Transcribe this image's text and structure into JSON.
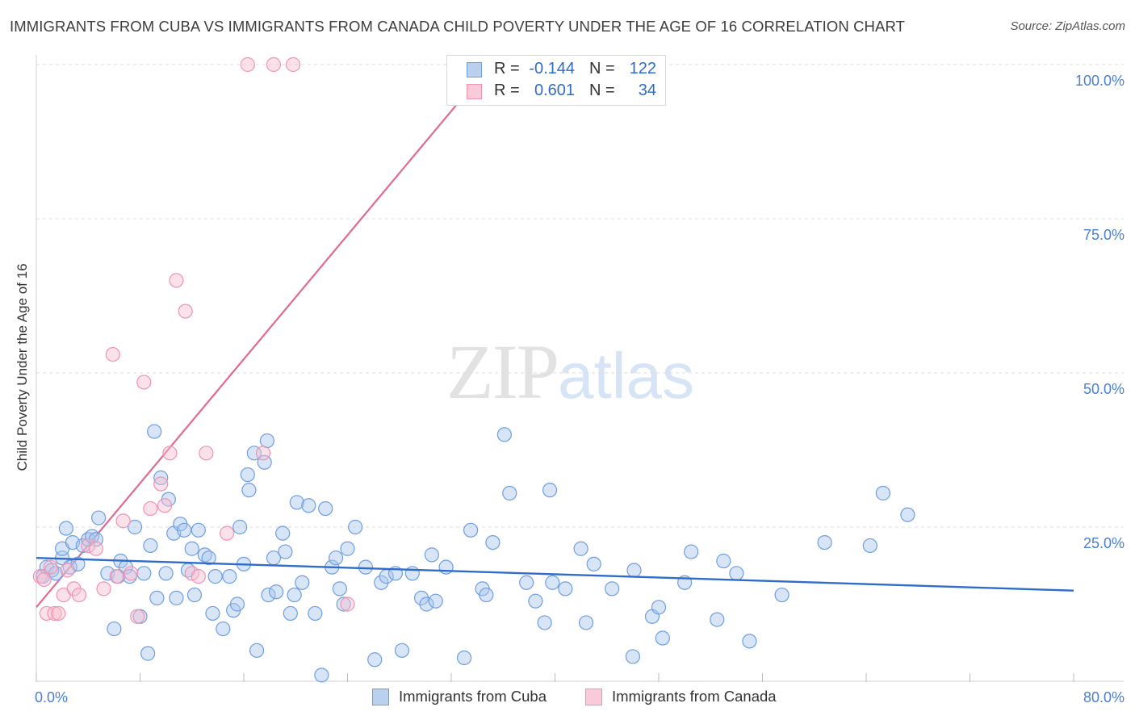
{
  "header": {
    "title": "IMMIGRANTS FROM CUBA VS IMMIGRANTS FROM CANADA CHILD POVERTY UNDER THE AGE OF 16 CORRELATION CHART",
    "source": "Source: ZipAtlas.com"
  },
  "watermark": {
    "zip": "ZIP",
    "atlas": "atlas"
  },
  "legend": {
    "rows": [
      {
        "r_label": "R =",
        "r_value": "-0.144",
        "n_label": "N =",
        "n_value": "122"
      },
      {
        "r_label": "R =",
        "r_value": "0.601",
        "n_label": "N =",
        "n_value": "34"
      }
    ]
  },
  "bottom_legend": {
    "cuba": "Immigrants from Cuba",
    "canada": "Immigrants from Canada"
  },
  "colors": {
    "cuba_fill": "#a9c6ee",
    "cuba_stroke": "#6f9ee0",
    "cuba_line": "#2f6cc9",
    "canada_fill": "#f7bfd0",
    "canada_stroke": "#ef93b1",
    "canada_line": "#e06a93",
    "tick_text": "#4a7fd4",
    "grid": "#dcdcdc"
  },
  "chart_data": {
    "type": "scatter",
    "title": "IMMIGRANTS FROM CUBA VS IMMIGRANTS FROM CANADA CHILD POVERTY UNDER THE AGE OF 16 CORRELATION CHART",
    "xlabel": "",
    "ylabel": "Child Poverty Under the Age of 16",
    "xlim": [
      0,
      80
    ],
    "ylim": [
      0,
      100
    ],
    "x_tick_labels": [
      "0.0%",
      "80.0%"
    ],
    "y_ticks": [
      25,
      50,
      75,
      100
    ],
    "y_tick_labels": [
      "25.0%",
      "50.0%",
      "75.0%",
      "100.0%"
    ],
    "grid": true,
    "legend_position": "top-center",
    "series": [
      {
        "name": "Immigrants from Cuba",
        "r": -0.144,
        "n": 122,
        "trend": {
          "x": [
            0,
            80
          ],
          "y": [
            20.0,
            14.7
          ]
        },
        "points": [
          [
            0.5,
            17.0
          ],
          [
            0.8,
            18.5
          ],
          [
            1.2,
            18.0
          ],
          [
            1.5,
            17.5
          ],
          [
            2.0,
            20.0
          ],
          [
            2.0,
            21.5
          ],
          [
            2.3,
            24.8
          ],
          [
            2.6,
            18.5
          ],
          [
            2.8,
            22.5
          ],
          [
            3.2,
            19.0
          ],
          [
            3.6,
            22.0
          ],
          [
            4.0,
            23.0
          ],
          [
            4.3,
            23.5
          ],
          [
            4.6,
            23.0
          ],
          [
            4.8,
            26.5
          ],
          [
            5.5,
            17.5
          ],
          [
            6.0,
            8.5
          ],
          [
            6.3,
            17.0
          ],
          [
            6.5,
            19.5
          ],
          [
            6.9,
            18.5
          ],
          [
            7.2,
            17.0
          ],
          [
            7.6,
            25.0
          ],
          [
            8.0,
            10.5
          ],
          [
            8.3,
            17.5
          ],
          [
            8.6,
            4.5
          ],
          [
            8.8,
            22.0
          ],
          [
            9.1,
            40.5
          ],
          [
            9.3,
            13.5
          ],
          [
            9.6,
            33.0
          ],
          [
            10.0,
            17.5
          ],
          [
            10.2,
            29.5
          ],
          [
            10.6,
            24.0
          ],
          [
            10.8,
            13.5
          ],
          [
            11.1,
            25.5
          ],
          [
            11.4,
            24.5
          ],
          [
            11.7,
            18.0
          ],
          [
            12.0,
            21.5
          ],
          [
            12.2,
            14.0
          ],
          [
            12.5,
            24.5
          ],
          [
            13.0,
            20.5
          ],
          [
            13.3,
            20.0
          ],
          [
            13.6,
            11.0
          ],
          [
            13.8,
            17.0
          ],
          [
            14.4,
            8.5
          ],
          [
            14.9,
            17.0
          ],
          [
            15.2,
            11.5
          ],
          [
            15.5,
            12.5
          ],
          [
            15.7,
            25.0
          ],
          [
            16.0,
            19.0
          ],
          [
            16.4,
            31.0
          ],
          [
            16.3,
            33.5
          ],
          [
            16.8,
            37.0
          ],
          [
            17.0,
            5.0
          ],
          [
            17.6,
            35.5
          ],
          [
            17.8,
            39.0
          ],
          [
            17.9,
            14.0
          ],
          [
            18.3,
            20.0
          ],
          [
            18.5,
            14.5
          ],
          [
            19.0,
            24.0
          ],
          [
            19.2,
            21.0
          ],
          [
            19.6,
            11.0
          ],
          [
            19.9,
            14.0
          ],
          [
            20.1,
            29.0
          ],
          [
            20.5,
            16.0
          ],
          [
            21.0,
            28.5
          ],
          [
            21.5,
            11.0
          ],
          [
            22.0,
            1.0
          ],
          [
            22.3,
            28.0
          ],
          [
            22.8,
            18.5
          ],
          [
            23.1,
            20.0
          ],
          [
            23.4,
            15.0
          ],
          [
            23.7,
            12.5
          ],
          [
            24.0,
            21.5
          ],
          [
            24.6,
            25.0
          ],
          [
            25.4,
            18.5
          ],
          [
            26.1,
            3.5
          ],
          [
            26.6,
            16.0
          ],
          [
            27.0,
            17.0
          ],
          [
            27.7,
            17.5
          ],
          [
            28.2,
            5.0
          ],
          [
            29.0,
            17.5
          ],
          [
            29.7,
            13.5
          ],
          [
            30.1,
            12.5
          ],
          [
            30.5,
            20.5
          ],
          [
            30.8,
            13.0
          ],
          [
            31.6,
            18.5
          ],
          [
            33.0,
            3.8
          ],
          [
            33.5,
            24.5
          ],
          [
            34.4,
            15.0
          ],
          [
            34.7,
            14.0
          ],
          [
            35.2,
            22.5
          ],
          [
            36.1,
            40.0
          ],
          [
            36.5,
            30.5
          ],
          [
            37.8,
            16.0
          ],
          [
            38.5,
            13.0
          ],
          [
            39.2,
            9.5
          ],
          [
            39.6,
            31.0
          ],
          [
            39.8,
            16.0
          ],
          [
            40.8,
            15.0
          ],
          [
            42.0,
            21.5
          ],
          [
            42.4,
            9.5
          ],
          [
            43.0,
            19.0
          ],
          [
            44.4,
            15.0
          ],
          [
            46.0,
            4.0
          ],
          [
            46.1,
            18.0
          ],
          [
            47.5,
            10.5
          ],
          [
            48.0,
            12.0
          ],
          [
            48.3,
            7.0
          ],
          [
            50.0,
            16.0
          ],
          [
            50.5,
            21.0
          ],
          [
            52.5,
            10.0
          ],
          [
            53.0,
            19.5
          ],
          [
            54.0,
            17.5
          ],
          [
            55.0,
            6.5
          ],
          [
            57.5,
            14.0
          ],
          [
            60.8,
            22.5
          ],
          [
            64.3,
            22.0
          ],
          [
            65.3,
            30.5
          ],
          [
            67.2,
            27.0
          ]
        ]
      },
      {
        "name": "Immigrants from Canada",
        "r": 0.601,
        "n": 34,
        "trend": {
          "x": [
            0,
            35
          ],
          "y": [
            12.0,
            100
          ]
        },
        "points": [
          [
            0.3,
            17.0
          ],
          [
            0.6,
            16.5
          ],
          [
            0.8,
            11.0
          ],
          [
            1.1,
            18.5
          ],
          [
            1.4,
            11.0
          ],
          [
            1.7,
            11.0
          ],
          [
            2.1,
            14.0
          ],
          [
            2.4,
            18.0
          ],
          [
            2.9,
            15.0
          ],
          [
            3.3,
            14.0
          ],
          [
            4.0,
            22.0
          ],
          [
            4.6,
            21.5
          ],
          [
            5.2,
            15.0
          ],
          [
            5.9,
            53.0
          ],
          [
            6.2,
            17.0
          ],
          [
            6.7,
            26.0
          ],
          [
            7.3,
            17.5
          ],
          [
            7.8,
            10.5
          ],
          [
            8.3,
            48.5
          ],
          [
            8.8,
            28.0
          ],
          [
            9.6,
            32.0
          ],
          [
            9.9,
            28.5
          ],
          [
            10.3,
            37.0
          ],
          [
            10.8,
            65.0
          ],
          [
            11.5,
            60.0
          ],
          [
            12.0,
            17.5
          ],
          [
            12.5,
            17.0
          ],
          [
            13.1,
            37.0
          ],
          [
            14.7,
            24.0
          ],
          [
            16.3,
            100.0
          ],
          [
            17.5,
            37.0
          ],
          [
            18.3,
            100.0
          ],
          [
            19.8,
            100.0
          ],
          [
            24.0,
            12.5
          ]
        ]
      }
    ]
  }
}
